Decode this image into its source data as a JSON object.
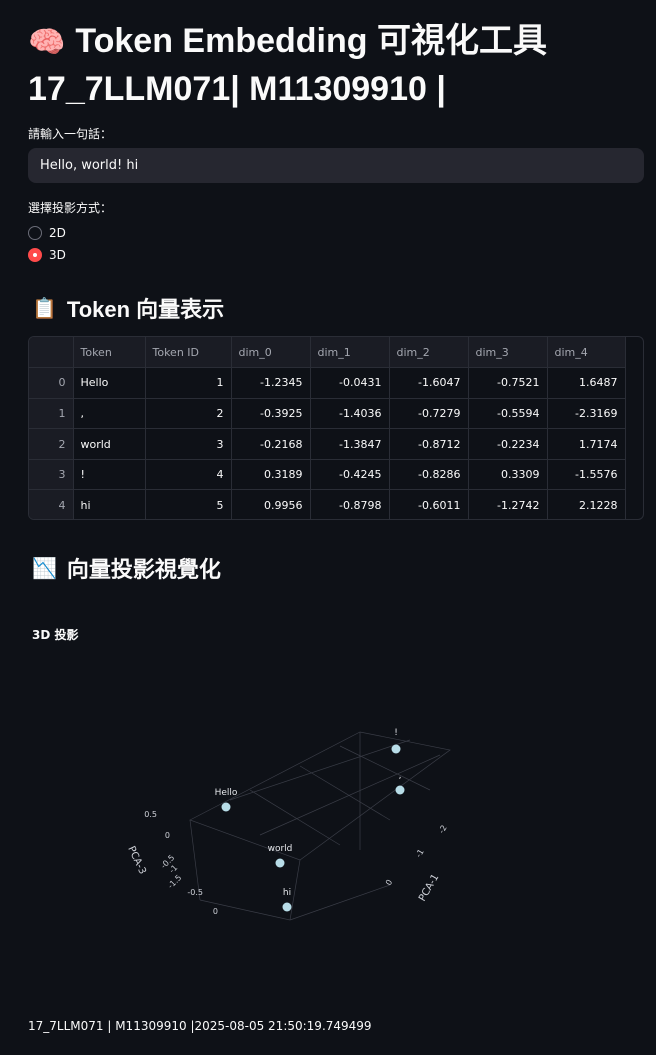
{
  "header": {
    "icon": "brain-icon",
    "title_line1": "Token Embedding 可視化工具",
    "title_line2": "17_7LLM071| M11309910 |"
  },
  "input": {
    "label": "請輸入一句話：",
    "value": "Hello, world! hi"
  },
  "projection": {
    "label": "選擇投影方式：",
    "options": [
      "2D",
      "3D"
    ],
    "selected": "3D"
  },
  "vector_section": {
    "icon": "clipboard-icon",
    "heading": "Token 向量表示"
  },
  "table": {
    "columns": [
      "",
      "Token",
      "Token ID",
      "dim_0",
      "dim_1",
      "dim_2",
      "dim_3",
      "dim_4"
    ],
    "rows": [
      [
        "0",
        "Hello",
        "1",
        "-1.2345",
        "-0.0431",
        "-1.6047",
        "-0.7521",
        "1.6487"
      ],
      [
        "1",
        ",",
        "2",
        "-0.3925",
        "-1.4036",
        "-0.7279",
        "-0.5594",
        "-2.3169"
      ],
      [
        "2",
        "world",
        "3",
        "-0.2168",
        "-1.3847",
        "-0.8712",
        "-0.2234",
        "1.7174"
      ],
      [
        "3",
        "!",
        "4",
        "0.3189",
        "-0.4245",
        "-0.8286",
        "0.3309",
        "-1.5576"
      ],
      [
        "4",
        "hi",
        "5",
        "0.9956",
        "-0.8798",
        "-0.6011",
        "-1.2742",
        "2.1228"
      ]
    ]
  },
  "viz_section": {
    "icon": "chart-decreasing-icon",
    "heading": "向量投影視覺化"
  },
  "chart_data": {
    "type": "scatter",
    "title": "3D 投影",
    "points": [
      {
        "label": "Hello"
      },
      {
        "label": ","
      },
      {
        "label": "world"
      },
      {
        "label": "!"
      },
      {
        "label": "hi"
      }
    ],
    "axes": {
      "x": {
        "label": "PCA-1",
        "ticks": [
          "-2",
          "-1",
          "0"
        ]
      },
      "z": {
        "label": "PCA-3",
        "ticks": [
          "0.5",
          "0",
          "-0.5",
          "-1",
          "-1.5",
          "-0.5",
          "0"
        ]
      }
    },
    "marker_color": "#b8dde8"
  },
  "footer": {
    "text": "17_7LLM071 | M11309910 |2025-08-05 21:50:19.749499"
  },
  "colors": {
    "background": "#0e1117",
    "input_bg": "#262730",
    "accent": "#ff4b4b"
  }
}
